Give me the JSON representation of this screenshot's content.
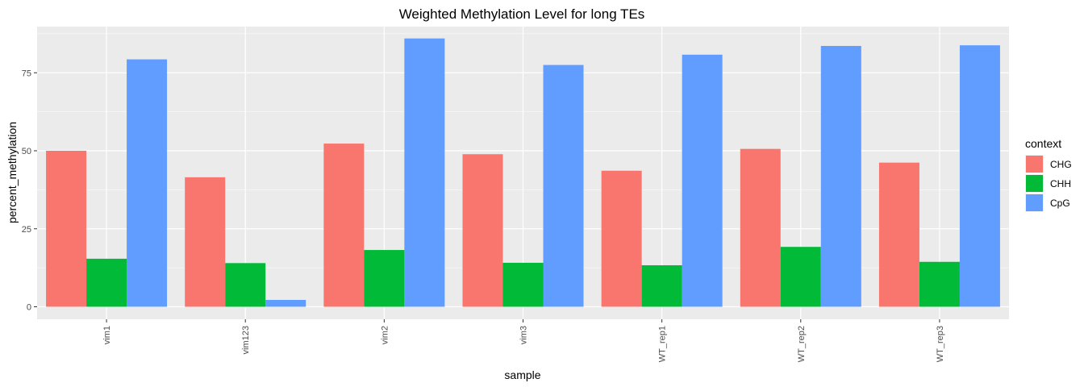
{
  "chart_data": {
    "type": "bar",
    "title": "Weighted Methylation Level for long TEs",
    "xlabel": "sample",
    "ylabel": "percent_methylation",
    "categories": [
      "vim1",
      "vim123",
      "vim2",
      "vim3",
      "WT_rep1",
      "WT_rep2",
      "WT_rep3"
    ],
    "series": [
      {
        "name": "CHG",
        "color": "#F8766D",
        "values": [
          50.0,
          41.5,
          52.3,
          48.9,
          43.6,
          50.6,
          46.2
        ]
      },
      {
        "name": "CHH",
        "color": "#00BA38",
        "values": [
          15.4,
          14.0,
          18.2,
          14.1,
          13.3,
          19.2,
          14.4
        ]
      },
      {
        "name": "CpG",
        "color": "#619CFF",
        "values": [
          79.3,
          2.2,
          86.0,
          77.5,
          80.8,
          83.6,
          83.8
        ]
      }
    ],
    "yticks": [
      0,
      25,
      50,
      75
    ],
    "ylim": [
      0,
      90
    ],
    "grid": true,
    "legend": {
      "title": "context",
      "position": "right"
    }
  }
}
